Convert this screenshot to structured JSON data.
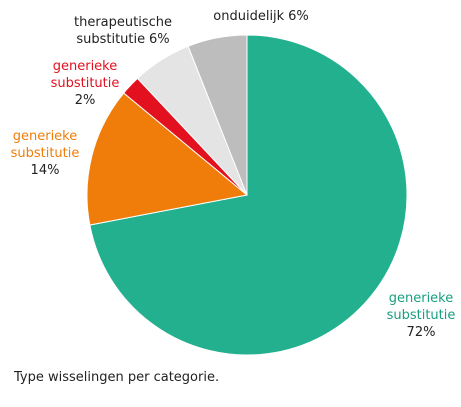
{
  "chart_data": {
    "type": "pie",
    "categories": [
      "generieke substitutie",
      "generieke substitutie",
      "generieke substitutie",
      "therapeutische substitutie",
      "onduidelijk"
    ],
    "values": [
      72,
      14,
      2,
      6,
      6
    ],
    "value_labels": [
      "72%",
      "14%",
      "2%",
      "6%",
      "6%"
    ],
    "colors": [
      "#22b08f",
      "#f07d0a",
      "#e3101f",
      "#e4e4e4",
      "#bdbdbd"
    ],
    "caption": "Type wisselingen per categorie."
  }
}
